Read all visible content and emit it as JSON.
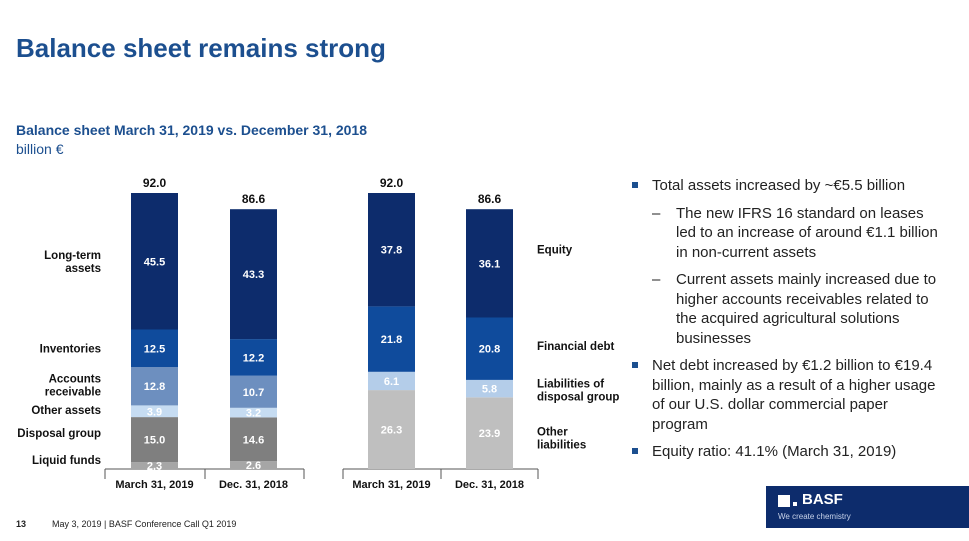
{
  "title": "Balance sheet remains strong",
  "subtitle": "Balance sheet March 31, 2019 vs. December 31, 2018",
  "unit": "billion €",
  "bullets": [
    {
      "text": "Total assets increased by ~€5.5 billion",
      "subs": [
        "The new IFRS 16 standard on leases led to an increase of around €1.1 billion in non-current assets",
        "Current assets mainly increased due to higher accounts receivables related to the acquired agricultural solutions businesses"
      ]
    },
    {
      "text": "Net debt increased by €1.2 billion to €19.4 billion, mainly as a result of a higher usage of our U.S. dollar commercial paper program",
      "subs": []
    },
    {
      "text": "Equity ratio: 41.1% (March 31, 2019)",
      "subs": []
    }
  ],
  "footer": {
    "page": "13",
    "text": "May 3, 2019  |  BASF Conference Call Q1 2019"
  },
  "logo": {
    "name": "BASF",
    "tagline": "We create chemistry"
  },
  "chart_data": [
    {
      "type": "bar",
      "stacked": true,
      "categories": [
        "March 31, 2019",
        "Dec. 31, 2018"
      ],
      "totals": [
        "92.0",
        "86.6"
      ],
      "series": [
        {
          "name": "Liquid funds",
          "values": [
            2.3,
            2.6
          ],
          "color": "#a6a6a6",
          "text": "#ffffff"
        },
        {
          "name": "Disposal group",
          "values": [
            15.0,
            14.6
          ],
          "color": "#7f7f7f",
          "text": "#ffffff"
        },
        {
          "name": "Other assets",
          "values": [
            3.9,
            3.2
          ],
          "color": "#c6dcf2",
          "text": "#ffffff"
        },
        {
          "name": "Accounts receivable",
          "values": [
            12.8,
            10.7
          ],
          "color": "#6d8fbf",
          "text": "#ffffff"
        },
        {
          "name": "Inventories",
          "values": [
            12.5,
            12.2
          ],
          "color": "#0f4b9c",
          "text": "#ffffff"
        },
        {
          "name": "Long-term assets",
          "values": [
            45.5,
            43.3
          ],
          "color": "#0d2c6c",
          "text": "#ffffff"
        }
      ]
    },
    {
      "type": "bar",
      "stacked": true,
      "categories": [
        "March 31, 2019",
        "Dec. 31, 2018"
      ],
      "totals": [
        "92.0",
        "86.6"
      ],
      "series": [
        {
          "name": "Other liabilities",
          "values": [
            26.3,
            23.9
          ],
          "color": "#bfbfbf",
          "text": "#ffffff"
        },
        {
          "name": "Liabilities of disposal group",
          "values": [
            6.1,
            5.8
          ],
          "color": "#b4cde9",
          "text": "#ffffff"
        },
        {
          "name": "Financial debt",
          "values": [
            21.8,
            20.8
          ],
          "color": "#0f4b9c",
          "text": "#ffffff"
        },
        {
          "name": "Equity",
          "values": [
            37.8,
            36.1
          ],
          "color": "#0d2c6c",
          "text": "#ffffff"
        }
      ]
    }
  ]
}
